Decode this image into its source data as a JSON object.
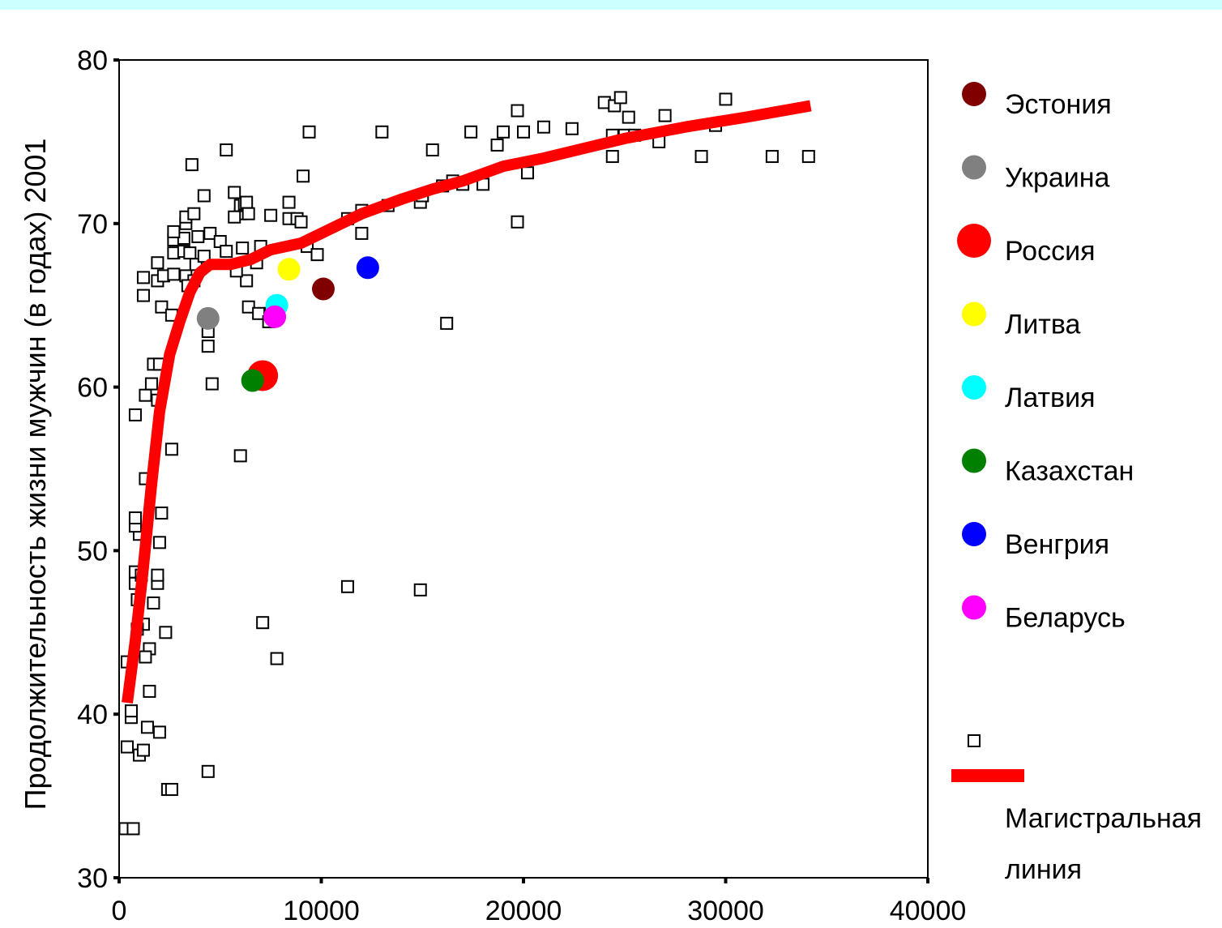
{
  "chart_data": {
    "type": "scatter",
    "title": "",
    "xlabel": "",
    "ylabel": "Продолжительность жизни мужчин (в годах) 2001",
    "xlim": [
      0,
      40000
    ],
    "ylim": [
      30,
      80
    ],
    "x_ticks": [
      "0",
      "10000",
      "20000",
      "30000",
      "40000"
    ],
    "y_ticks": [
      "30",
      "40",
      "50",
      "60",
      "70",
      "80"
    ],
    "grid": false,
    "legend_position": "right",
    "series": [
      {
        "marker": "open-square",
        "points": [
          [
            300,
            33
          ],
          [
            700,
            33
          ],
          [
            400,
            38
          ],
          [
            1000,
            37.5
          ],
          [
            1200,
            37.8
          ],
          [
            1400,
            39.2
          ],
          [
            2000,
            38.9
          ],
          [
            600,
            39.8
          ],
          [
            600,
            40.2
          ],
          [
            2400,
            35.4
          ],
          [
            2600,
            35.4
          ],
          [
            4400,
            36.5
          ],
          [
            1500,
            41.4
          ],
          [
            400,
            43.2
          ],
          [
            1500,
            44
          ],
          [
            1300,
            43.5
          ],
          [
            1200,
            45.5
          ],
          [
            900,
            45.2
          ],
          [
            2300,
            45
          ],
          [
            1700,
            46.8
          ],
          [
            900,
            47
          ],
          [
            800,
            48
          ],
          [
            1900,
            48
          ],
          [
            1900,
            48.5
          ],
          [
            800,
            48.7
          ],
          [
            1100,
            48.5
          ],
          [
            2000,
            50.5
          ],
          [
            1000,
            51
          ],
          [
            800,
            51.5
          ],
          [
            800,
            52
          ],
          [
            2100,
            52.3
          ],
          [
            1300,
            54.4
          ],
          [
            2600,
            56.2
          ],
          [
            800,
            58.3
          ],
          [
            1300,
            59.5
          ],
          [
            1900,
            59.2
          ],
          [
            1600,
            60.2
          ],
          [
            1700,
            61.4
          ],
          [
            2000,
            61.4
          ],
          [
            4600,
            60.2
          ],
          [
            2100,
            64.9
          ],
          [
            2600,
            64.4
          ],
          [
            1200,
            65.6
          ],
          [
            1200,
            66.7
          ],
          [
            1900,
            66.5
          ],
          [
            2200,
            66.8
          ],
          [
            2700,
            66.9
          ],
          [
            3300,
            66.8
          ],
          [
            3700,
            66.5
          ],
          [
            3400,
            66.2
          ],
          [
            1900,
            67.6
          ],
          [
            2700,
            68.2
          ],
          [
            3200,
            68.3
          ],
          [
            3500,
            68.2
          ],
          [
            3800,
            67.5
          ],
          [
            4200,
            68
          ],
          [
            2700,
            69
          ],
          [
            3200,
            69.1
          ],
          [
            3900,
            69.2
          ],
          [
            4500,
            69.4
          ],
          [
            5000,
            68.9
          ],
          [
            5300,
            68.3
          ],
          [
            2700,
            69.5
          ],
          [
            3300,
            70
          ],
          [
            3300,
            70.4
          ],
          [
            3700,
            70.6
          ],
          [
            6000,
            70.6
          ],
          [
            6000,
            71.1
          ],
          [
            6200,
            71.2
          ],
          [
            5700,
            71.9
          ],
          [
            6300,
            71.3
          ],
          [
            5700,
            70.4
          ],
          [
            6400,
            70.6
          ],
          [
            7500,
            70.5
          ],
          [
            8400,
            70.3
          ],
          [
            8800,
            70.3
          ],
          [
            9000,
            70.1
          ],
          [
            8400,
            71.3
          ],
          [
            6100,
            68.5
          ],
          [
            6300,
            66.5
          ],
          [
            5800,
            67.1
          ],
          [
            6800,
            67.6
          ],
          [
            7000,
            68.6
          ],
          [
            9300,
            68.6
          ],
          [
            9800,
            68.1
          ],
          [
            6400,
            64.9
          ],
          [
            6900,
            64.5
          ],
          [
            7400,
            64
          ],
          [
            7500,
            64.5
          ],
          [
            4400,
            63.4
          ],
          [
            4400,
            62.5
          ],
          [
            3600,
            73.6
          ],
          [
            4200,
            71.7
          ],
          [
            5300,
            74.5
          ],
          [
            9100,
            72.9
          ],
          [
            9400,
            75.6
          ],
          [
            11300,
            70.3
          ],
          [
            12000,
            70.8
          ],
          [
            12000,
            69.4
          ],
          [
            13000,
            75.6
          ],
          [
            13300,
            71.1
          ],
          [
            14900,
            71.3
          ],
          [
            15000,
            71.7
          ],
          [
            15500,
            74.5
          ],
          [
            16000,
            72.3
          ],
          [
            16500,
            72.6
          ],
          [
            17000,
            72.4
          ],
          [
            17400,
            75.6
          ],
          [
            18000,
            72.4
          ],
          [
            18700,
            74.8
          ],
          [
            19000,
            75.6
          ],
          [
            19700,
            76.9
          ],
          [
            20000,
            75.6
          ],
          [
            20200,
            73.1
          ],
          [
            21000,
            75.9
          ],
          [
            22400,
            75.8
          ],
          [
            24000,
            77.4
          ],
          [
            24500,
            77.2
          ],
          [
            24800,
            77.7
          ],
          [
            24400,
            75.4
          ],
          [
            24400,
            74.1
          ],
          [
            25000,
            75.4
          ],
          [
            25200,
            76.5
          ],
          [
            25500,
            75.4
          ],
          [
            26700,
            75
          ],
          [
            27000,
            76.6
          ],
          [
            28800,
            74.1
          ],
          [
            29500,
            76
          ],
          [
            30000,
            77.6
          ],
          [
            32300,
            74.1
          ],
          [
            34100,
            74.1
          ],
          [
            19700,
            70.1
          ],
          [
            16200,
            63.9
          ],
          [
            6000,
            55.8
          ],
          [
            7100,
            45.6
          ],
          [
            7800,
            43.4
          ],
          [
            11300,
            47.8
          ],
          [
            14900,
            47.6
          ]
        ]
      },
      {
        "name": "Магистральная линия",
        "type": "line",
        "color": "#ff0000",
        "points": [
          [
            400,
            40.7
          ],
          [
            800,
            44.5
          ],
          [
            1200,
            49
          ],
          [
            1600,
            54
          ],
          [
            2000,
            58.5
          ],
          [
            2500,
            62
          ],
          [
            3000,
            64
          ],
          [
            3500,
            65.8
          ],
          [
            4000,
            67
          ],
          [
            4500,
            67.5
          ],
          [
            5500,
            67.5
          ],
          [
            6500,
            67.8
          ],
          [
            7500,
            68.4
          ],
          [
            9000,
            68.8
          ],
          [
            10000,
            69.4
          ],
          [
            12000,
            70.6
          ],
          [
            14000,
            71.5
          ],
          [
            15500,
            72.1
          ],
          [
            17000,
            72.6
          ],
          [
            19000,
            73.5
          ],
          [
            21000,
            74
          ],
          [
            23000,
            74.6
          ],
          [
            25000,
            75.2
          ],
          [
            28000,
            75.9
          ],
          [
            31000,
            76.5
          ],
          [
            34200,
            77.2
          ]
        ]
      }
    ],
    "highlighted": [
      {
        "name": "Эстония",
        "color": "#800000",
        "x": 10100,
        "y": 66,
        "size": "medium"
      },
      {
        "name": "Украина",
        "color": "#808080",
        "x": 4400,
        "y": 64.2,
        "size": "medium"
      },
      {
        "name": "Россия",
        "color": "#ff0000",
        "x": 7100,
        "y": 60.7,
        "size": "large"
      },
      {
        "name": "Литва",
        "color": "#ffff00",
        "x": 8400,
        "y": 67.2,
        "size": "medium"
      },
      {
        "name": "Латвия",
        "color": "#00ffff",
        "x": 7800,
        "y": 65,
        "size": "medium"
      },
      {
        "name": "Казахстан",
        "color": "#008000",
        "x": 6600,
        "y": 60.4,
        "size": "medium"
      },
      {
        "name": "Венгрия",
        "color": "#0000ff",
        "x": 12300,
        "y": 67.3,
        "size": "medium"
      },
      {
        "name": "Беларусь",
        "color": "#ff00ff",
        "x": 7700,
        "y": 64.3,
        "size": "medium"
      }
    ],
    "legend": {
      "countries": [
        "Эстония",
        "Украина",
        "Россия",
        "Литва",
        "Латвия",
        "Казахстан",
        "Венгрия",
        "Беларусь"
      ],
      "line_label_line1": "Магистральная",
      "line_label_line2": "линия"
    }
  }
}
